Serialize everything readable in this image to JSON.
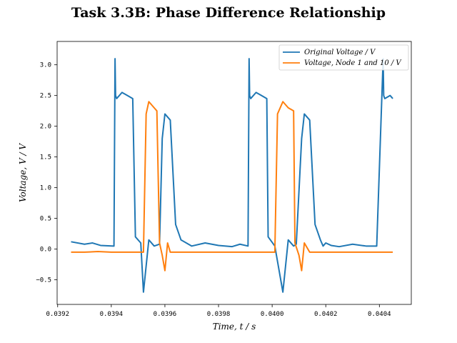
{
  "chart_data": {
    "type": "line",
    "title": "Task 3.3B: Phase Difference Relationship",
    "xlabel": "Time, t / s",
    "ylabel": "Voltage, V / V",
    "xlim": [
      0.039198,
      0.040519
    ],
    "ylim": [
      -0.9,
      3.38
    ],
    "xticks": [
      0.0392,
      0.0394,
      0.0396,
      0.0398,
      0.04,
      0.0402,
      0.0404
    ],
    "xtick_labels": [
      "0.0392",
      "0.0394",
      "0.0396",
      "0.0398",
      "0.0400",
      "0.0402",
      "0.0404"
    ],
    "yticks": [
      -0.5,
      0.0,
      0.5,
      1.0,
      1.5,
      2.0,
      2.5,
      3.0
    ],
    "ytick_labels": [
      "−0.5",
      "0.0",
      "0.5",
      "1.0",
      "1.5",
      "2.0",
      "2.5",
      "3.0"
    ],
    "grid": false,
    "legend_position": "top-right",
    "series": [
      {
        "name": "Original Voltage / V",
        "color": "#1f77b4",
        "x": [
          0.03925,
          0.0393,
          0.03933,
          0.03936,
          0.03941,
          0.039414,
          0.039416,
          0.03942,
          0.03944,
          0.03946,
          0.03948,
          0.03949,
          0.03951,
          0.03952,
          0.03954,
          0.03956,
          0.03958,
          0.03959,
          0.0396,
          0.03962,
          0.03964,
          0.03966,
          0.0397,
          0.03975,
          0.0398,
          0.03985,
          0.03988,
          0.03991,
          0.039914,
          0.039916,
          0.03992,
          0.03994,
          0.03996,
          0.03998,
          0.039985,
          0.04001,
          0.04004,
          0.04006,
          0.04008,
          0.04009,
          0.04011,
          0.04012,
          0.04014,
          0.04016,
          0.04018,
          0.04019,
          0.0402,
          0.04022,
          0.04025,
          0.0403,
          0.04035,
          0.04039,
          0.040414,
          0.040416,
          0.04042,
          0.04044,
          0.04045
        ],
        "y": [
          0.12,
          0.08,
          0.1,
          0.06,
          0.05,
          3.1,
          2.5,
          2.45,
          2.55,
          2.5,
          2.45,
          0.2,
          0.1,
          -0.7,
          0.15,
          0.05,
          0.08,
          1.8,
          2.2,
          2.1,
          0.4,
          0.15,
          0.05,
          0.1,
          0.06,
          0.04,
          0.08,
          0.05,
          3.1,
          2.5,
          2.45,
          2.55,
          2.5,
          2.45,
          0.2,
          0.05,
          -0.7,
          0.15,
          0.05,
          0.08,
          1.8,
          2.2,
          2.1,
          0.4,
          0.15,
          0.05,
          0.1,
          0.06,
          0.04,
          0.08,
          0.05,
          0.05,
          3.1,
          2.5,
          2.45,
          2.5,
          2.45
        ]
      },
      {
        "name": "Voltage, Node 1 and 10 / V",
        "color": "#ff7f0e",
        "x": [
          0.03925,
          0.0393,
          0.03935,
          0.0394,
          0.03945,
          0.0395,
          0.03952,
          0.03953,
          0.03954,
          0.03956,
          0.03957,
          0.03958,
          0.03959,
          0.0396,
          0.03961,
          0.03962,
          0.03964,
          0.03968,
          0.03975,
          0.0398,
          0.03985,
          0.0399,
          0.03995,
          0.04,
          0.04001,
          0.04002,
          0.04004,
          0.04006,
          0.04008,
          0.040085,
          0.0401,
          0.04011,
          0.04012,
          0.04014,
          0.04016,
          0.0402,
          0.04025,
          0.0403,
          0.04035,
          0.0404,
          0.04045
        ],
        "y": [
          -0.05,
          -0.05,
          -0.04,
          -0.05,
          -0.05,
          -0.05,
          -0.05,
          2.2,
          2.4,
          2.3,
          2.25,
          0.1,
          -0.1,
          -0.35,
          0.1,
          -0.05,
          -0.05,
          -0.05,
          -0.05,
          -0.05,
          -0.05,
          -0.05,
          -0.05,
          -0.05,
          -0.05,
          2.2,
          2.4,
          2.3,
          2.25,
          0.1,
          -0.1,
          -0.35,
          0.1,
          -0.05,
          -0.05,
          -0.05,
          -0.05,
          -0.05,
          -0.05,
          -0.05,
          -0.05
        ]
      }
    ]
  }
}
